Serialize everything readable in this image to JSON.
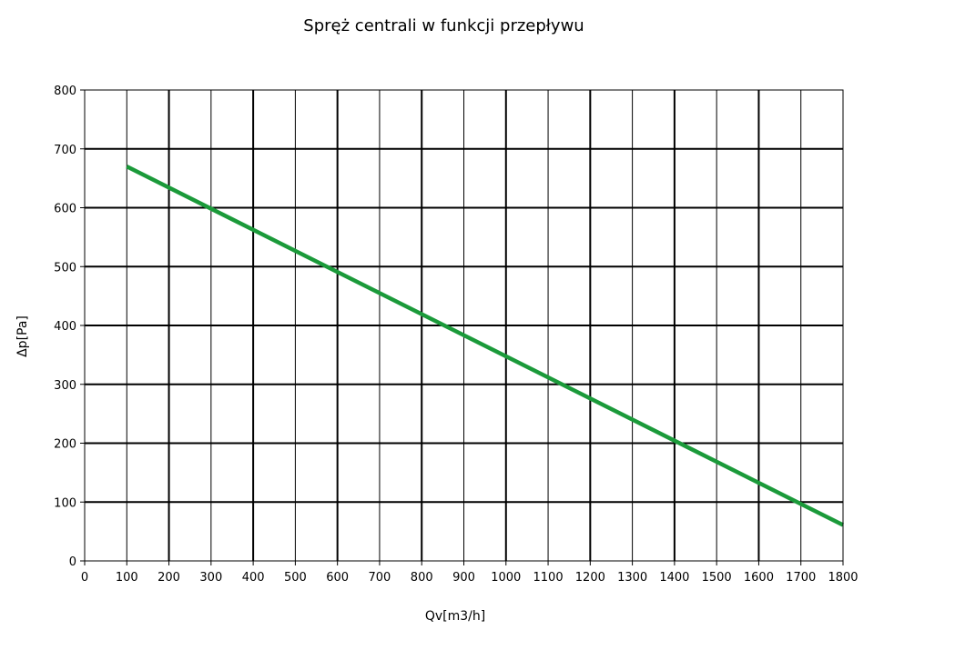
{
  "chart_data": {
    "type": "line",
    "title": "Spręż centrali w funkcji przepływu",
    "xlabel": "Qv[m3/h]",
    "ylabel": "Δp[Pa]",
    "xlim": [
      0,
      1800
    ],
    "ylim": [
      0,
      800
    ],
    "x_ticks": [
      0,
      100,
      200,
      300,
      400,
      500,
      600,
      700,
      800,
      900,
      1000,
      1100,
      1200,
      1300,
      1400,
      1500,
      1600,
      1700,
      1800
    ],
    "y_ticks": [
      0,
      100,
      200,
      300,
      400,
      500,
      600,
      700,
      800
    ],
    "grid": true,
    "legend": "none",
    "series": [
      {
        "color": "#1b9a3a",
        "x": [
          100,
          1800
        ],
        "y": [
          670,
          61
        ]
      }
    ]
  }
}
